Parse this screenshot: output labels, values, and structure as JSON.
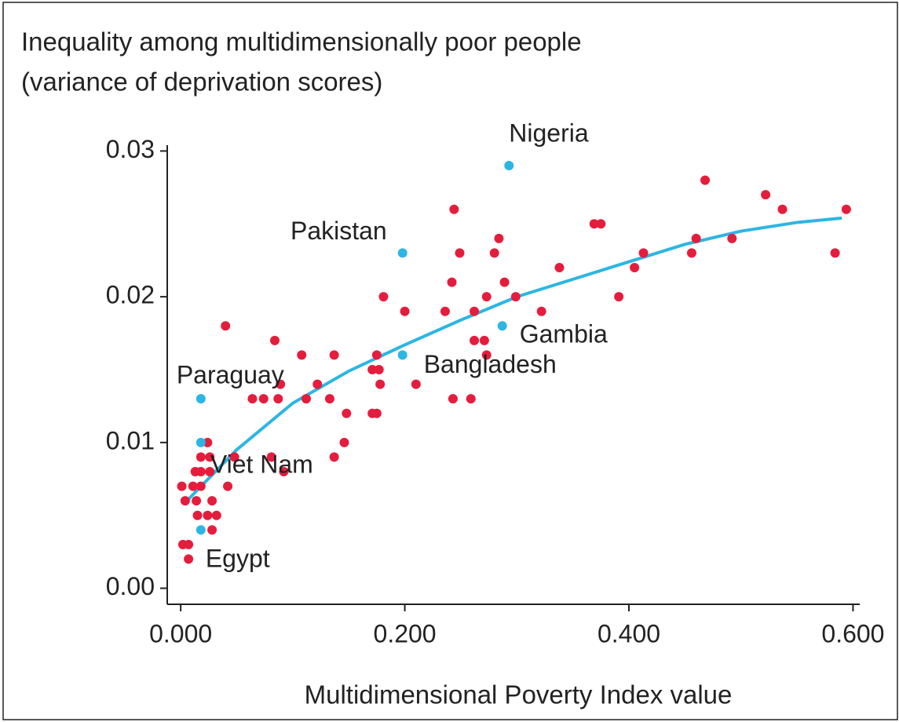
{
  "chart_data": {
    "type": "scatter",
    "ylabel": [
      "Inequality among multidimensionally poor people",
      "(variance of deprivation scores)"
    ],
    "xlabel": "Multidimensional Poverty Index value",
    "xlim": [
      -0.012,
      0.606
    ],
    "ylim": [
      -0.0011,
      0.0304
    ],
    "xticks": [
      {
        "value": 0,
        "label": "0.000"
      },
      {
        "value": 0.2,
        "label": "0.200"
      },
      {
        "value": 0.4,
        "label": "0.400"
      },
      {
        "value": 0.6,
        "label": "0.600"
      }
    ],
    "yticks": [
      {
        "value": 0,
        "label": "0.00"
      },
      0.01,
      0.02,
      0.03
    ],
    "series": [
      {
        "color": "#e51d3d",
        "x": [
          0.468,
          0.522,
          0.537,
          0.594,
          0.244,
          0.284,
          0.46,
          0.492,
          0.249,
          0.28,
          0.413,
          0.456,
          0.584,
          0.369,
          0.375,
          0.338,
          0.405,
          0.242,
          0.289,
          0.181,
          0.273,
          0.299,
          0.391,
          0.2,
          0.236,
          0.262,
          0.322,
          0.04,
          0.084,
          0.262,
          0.271,
          0.108,
          0.137,
          0.175,
          0.273,
          0.171,
          0.177,
          0.122,
          0.178,
          0.21,
          0.089,
          0.064,
          0.074,
          0.087,
          0.112,
          0.133,
          0.243,
          0.259,
          0.148,
          0.171,
          0.175,
          0.146,
          0.024,
          0.018,
          0.026,
          0.048,
          0.081,
          0.137,
          0.013,
          0.018,
          0.026,
          0.092,
          0.001,
          0.011,
          0.018,
          0.042,
          0.004,
          0.014,
          0.028,
          0.015,
          0.024,
          0.032,
          0.028,
          0.002,
          0.007,
          0.007
        ],
        "values": [
          0.028,
          0.027,
          0.026,
          0.026,
          0.026,
          0.024,
          0.024,
          0.024,
          0.023,
          0.023,
          0.023,
          0.023,
          0.023,
          0.025,
          0.025,
          0.022,
          0.022,
          0.021,
          0.021,
          0.02,
          0.02,
          0.02,
          0.02,
          0.019,
          0.019,
          0.019,
          0.019,
          0.018,
          0.017,
          0.017,
          0.017,
          0.016,
          0.016,
          0.016,
          0.016,
          0.015,
          0.015,
          0.014,
          0.014,
          0.014,
          0.014,
          0.013,
          0.013,
          0.013,
          0.013,
          0.013,
          0.013,
          0.013,
          0.012,
          0.012,
          0.012,
          0.01,
          0.01,
          0.009,
          0.009,
          0.009,
          0.009,
          0.009,
          0.008,
          0.008,
          0.008,
          0.008,
          0.007,
          0.007,
          0.007,
          0.007,
          0.006,
          0.006,
          0.006,
          0.005,
          0.005,
          0.005,
          0.004,
          0.003,
          0.003,
          0.002
        ]
      },
      {
        "color": "#2cb6e3",
        "x": [
          0.293,
          0.198,
          0.287,
          0.198,
          0.018,
          0.018,
          0.018
        ],
        "values": [
          0.029,
          0.023,
          0.018,
          0.016,
          0.013,
          0.01,
          0.004
        ],
        "labels": [
          "Nigeria",
          "Pakistan",
          "Gambia",
          "Bangladesh",
          "Paraguay",
          "Viet Nam",
          "Egypt"
        ]
      }
    ],
    "curve": {
      "color": "#2cb6e3",
      "x": [
        0.003,
        0.05,
        0.1,
        0.15,
        0.2,
        0.25,
        0.3,
        0.35,
        0.4,
        0.45,
        0.5,
        0.55,
        0.59
      ],
      "values": [
        0.0058,
        0.0095,
        0.0127,
        0.0149,
        0.0167,
        0.0184,
        0.02,
        0.0212,
        0.0224,
        0.0236,
        0.0245,
        0.0251,
        0.0254
      ]
    }
  }
}
